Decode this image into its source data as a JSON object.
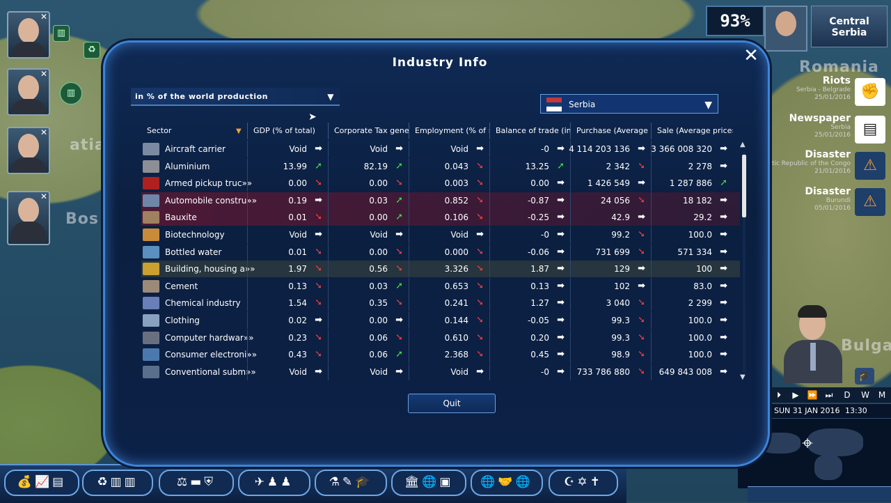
{
  "map": {
    "labels": [
      "Romania",
      "Bos",
      "Bulga",
      "atia"
    ]
  },
  "status": {
    "approval": "93%",
    "region_name": "Central Serbia"
  },
  "news": [
    {
      "title": "Riots",
      "line1": "Serbia - Belgrade",
      "line2": "25/01/2016"
    },
    {
      "title": "Newspaper",
      "line1": "Serbia",
      "line2": "25/01/2016"
    },
    {
      "title": "Disaster",
      "line1": "Democratic Republic of the Congo",
      "line2": "21/01/2016"
    },
    {
      "title": "Disaster",
      "line1": "Burundi",
      "line2": "05/01/2016"
    }
  ],
  "time": {
    "speed_labels": [
      "D",
      "W",
      "M"
    ],
    "date": "SUN 31 JAN 2016",
    "clock": "13:30"
  },
  "dialog": {
    "title": "Industry Info",
    "measure_select": "in % of the world production",
    "country_select": "Serbia",
    "quit_label": "Quit",
    "columns": [
      "Sector",
      "GDP (% of total)",
      "Corporate Tax generat»",
      "Employment (% of »»",
      "Balance of trade (in»»",
      "Purchase (Average »»",
      "Sale (Average price»»"
    ],
    "rows": [
      {
        "name": "Aircraft carrier",
        "icon": "ship-icon",
        "hl": "",
        "cells": [
          [
            "Void",
            "flat"
          ],
          [
            "Void",
            "flat"
          ],
          [
            "Void",
            "flat"
          ],
          [
            "-0",
            "flat"
          ],
          [
            "4 114 203 136",
            "flat"
          ],
          [
            "3 366 008 320",
            "flat"
          ]
        ]
      },
      {
        "name": "Aluminium",
        "icon": "metal-icon",
        "hl": "",
        "cells": [
          [
            "13.99",
            "up"
          ],
          [
            "82.19",
            "up"
          ],
          [
            "0.043",
            "down"
          ],
          [
            "13.25",
            "up"
          ],
          [
            "2 342",
            "down"
          ],
          [
            "2 278",
            "flat"
          ]
        ]
      },
      {
        "name": "Armed pickup truc»»",
        "icon": "pickup-icon",
        "hl": "",
        "cells": [
          [
            "0.00",
            "down"
          ],
          [
            "0.00",
            "down"
          ],
          [
            "0.003",
            "down"
          ],
          [
            "0.00",
            "flat"
          ],
          [
            "1 426 549",
            "flat"
          ],
          [
            "1 287 886",
            "up"
          ]
        ]
      },
      {
        "name": "Automobile constru»»",
        "icon": "car-icon",
        "hl": "red",
        "cells": [
          [
            "0.19",
            "flat"
          ],
          [
            "0.03",
            "up"
          ],
          [
            "0.852",
            "down"
          ],
          [
            "-0.87",
            "flat"
          ],
          [
            "24 056",
            "down"
          ],
          [
            "18 182",
            "flat"
          ]
        ]
      },
      {
        "name": "Bauxite",
        "icon": "ore-icon",
        "hl": "red",
        "cells": [
          [
            "0.01",
            "down"
          ],
          [
            "0.00",
            "up"
          ],
          [
            "0.106",
            "down"
          ],
          [
            "-0.25",
            "flat"
          ],
          [
            "42.9",
            "flat"
          ],
          [
            "29.2",
            "flat"
          ]
        ]
      },
      {
        "name": "Biotechnology",
        "icon": "bio-icon",
        "hl": "",
        "cells": [
          [
            "Void",
            "flat"
          ],
          [
            "Void",
            "flat"
          ],
          [
            "Void",
            "flat"
          ],
          [
            "-0",
            "flat"
          ],
          [
            "99.2",
            "down"
          ],
          [
            "100.0",
            "flat"
          ]
        ]
      },
      {
        "name": "Bottled water",
        "icon": "water-icon",
        "hl": "",
        "cells": [
          [
            "0.01",
            "down"
          ],
          [
            "0.00",
            "down"
          ],
          [
            "0.000",
            "down"
          ],
          [
            "-0.06",
            "flat"
          ],
          [
            "731 699",
            "down"
          ],
          [
            "571 334",
            "flat"
          ]
        ]
      },
      {
        "name": "Building, housing a»»",
        "icon": "crane-icon",
        "hl": "green",
        "cells": [
          [
            "1.97",
            "down"
          ],
          [
            "0.56",
            "down"
          ],
          [
            "3.326",
            "down"
          ],
          [
            "1.87",
            "flat"
          ],
          [
            "129",
            "flat"
          ],
          [
            "100",
            "flat"
          ]
        ]
      },
      {
        "name": "Cement",
        "icon": "cement-icon",
        "hl": "",
        "cells": [
          [
            "0.13",
            "down"
          ],
          [
            "0.03",
            "up"
          ],
          [
            "0.653",
            "down"
          ],
          [
            "0.13",
            "flat"
          ],
          [
            "102",
            "flat"
          ],
          [
            "83.0",
            "flat"
          ]
        ]
      },
      {
        "name": "Chemical industry",
        "icon": "flask-icon",
        "hl": "",
        "cells": [
          [
            "1.54",
            "down"
          ],
          [
            "0.35",
            "down"
          ],
          [
            "0.241",
            "down"
          ],
          [
            "1.27",
            "flat"
          ],
          [
            "3 040",
            "down"
          ],
          [
            "2 299",
            "flat"
          ]
        ]
      },
      {
        "name": "Clothing",
        "icon": "clothing-icon",
        "hl": "",
        "cells": [
          [
            "0.02",
            "flat"
          ],
          [
            "0.00",
            "flat"
          ],
          [
            "0.144",
            "down"
          ],
          [
            "-0.05",
            "flat"
          ],
          [
            "99.3",
            "down"
          ],
          [
            "100.0",
            "flat"
          ]
        ]
      },
      {
        "name": "Computer hardwar»»",
        "icon": "computer-icon",
        "hl": "",
        "cells": [
          [
            "0.23",
            "down"
          ],
          [
            "0.06",
            "down"
          ],
          [
            "0.610",
            "down"
          ],
          [
            "0.20",
            "flat"
          ],
          [
            "99.3",
            "down"
          ],
          [
            "100.0",
            "flat"
          ]
        ]
      },
      {
        "name": "Consumer electroni»»",
        "icon": "electronics-icon",
        "hl": "",
        "cells": [
          [
            "0.43",
            "down"
          ],
          [
            "0.06",
            "up"
          ],
          [
            "2.368",
            "down"
          ],
          [
            "0.45",
            "flat"
          ],
          [
            "98.9",
            "down"
          ],
          [
            "100.0",
            "flat"
          ]
        ]
      },
      {
        "name": "Conventional subm»»",
        "icon": "submarine-icon",
        "hl": "",
        "cells": [
          [
            "Void",
            "flat"
          ],
          [
            "Void",
            "flat"
          ],
          [
            "Void",
            "flat"
          ],
          [
            "-0",
            "flat"
          ],
          [
            "733 786 880",
            "down"
          ],
          [
            "649 843 008",
            "flat"
          ]
        ]
      }
    ]
  }
}
